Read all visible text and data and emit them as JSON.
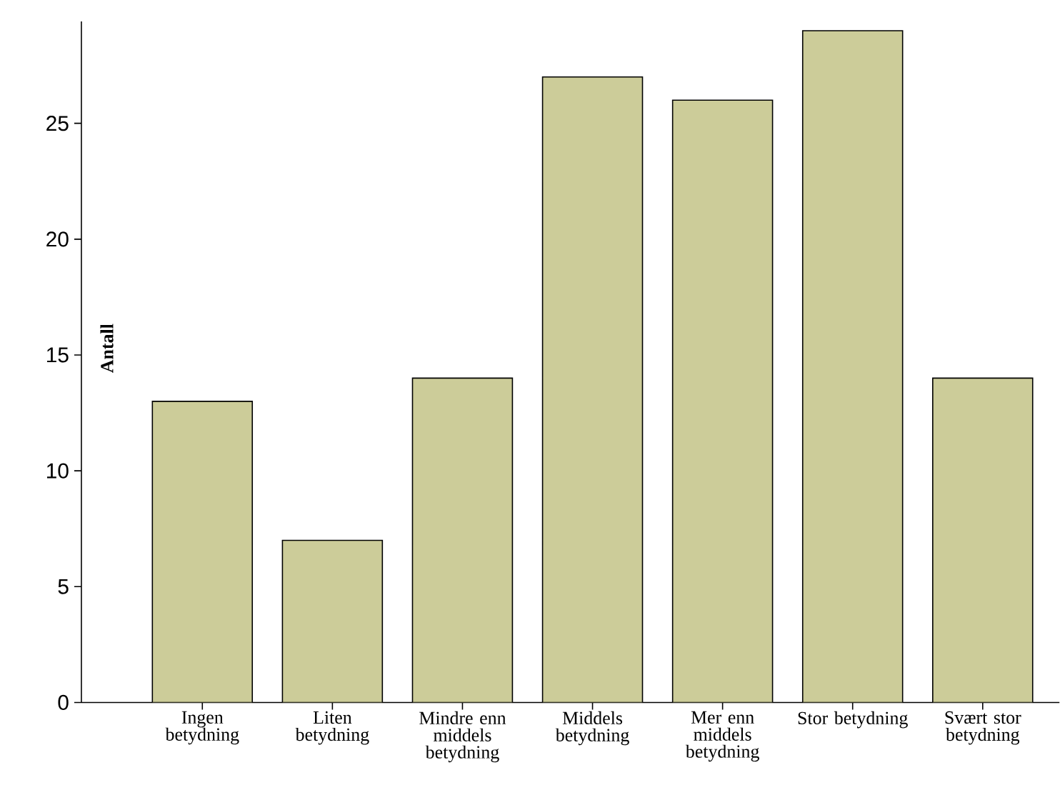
{
  "chart_data": {
    "type": "bar",
    "ylabel": "Antall",
    "categories": [
      "Ingen betydning",
      "Liten betydning",
      "Mindre enn middels betydning",
      "Middels betydning",
      "Mer enn middels betydning",
      "Stor betydning",
      "Svært stor betydning"
    ],
    "values": [
      13,
      7,
      14,
      27,
      26,
      29,
      14
    ],
    "color": "#cccc99",
    "ylim": [
      0,
      29.4
    ],
    "yticks": [
      0,
      5,
      10,
      15,
      20,
      25
    ],
    "grid": false
  }
}
